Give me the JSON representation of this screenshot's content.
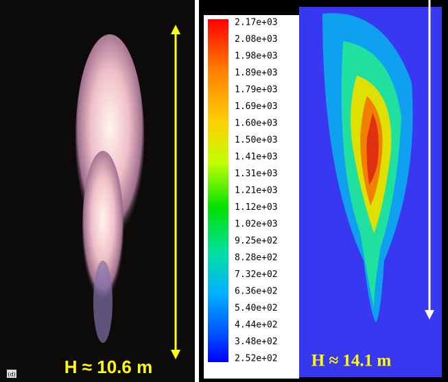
{
  "photo": {
    "panel_label": "(d)",
    "height_label": "H ≈ 10.6 m"
  },
  "simulation": {
    "height_label": "H ≈ 14.1 m",
    "colorbar": {
      "labels": [
        "2.17e+03",
        "2.08e+03",
        "1.98e+03",
        "1.89e+03",
        "1.79e+03",
        "1.69e+03",
        "1.60e+03",
        "1.50e+03",
        "1.41e+03",
        "1.31e+03",
        "1.21e+03",
        "1.12e+03",
        "1.02e+03",
        "9.25e+02",
        "8.28e+02",
        "7.32e+02",
        "6.36e+02",
        "5.40e+02",
        "4.44e+02",
        "3.48e+02",
        "2.52e+02"
      ]
    }
  }
}
